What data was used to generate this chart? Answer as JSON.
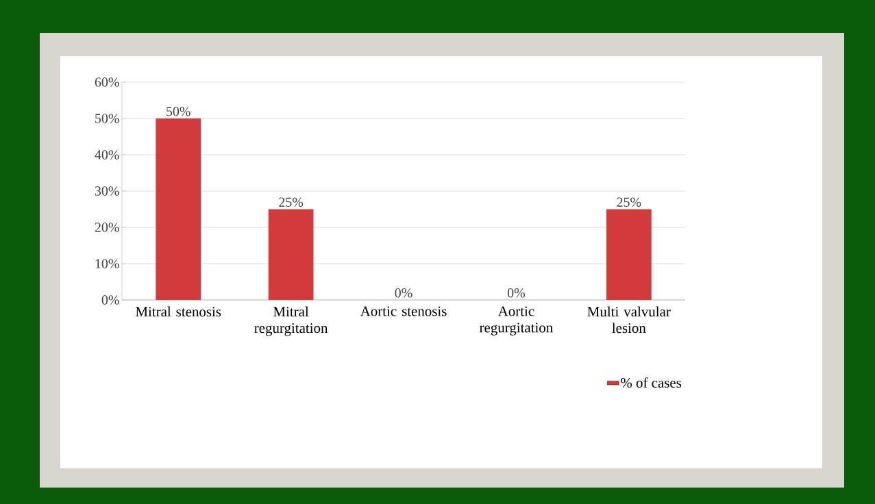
{
  "chart_data": {
    "type": "bar",
    "categories": [
      "Mitral stenosis",
      "Mitral regurgitation",
      "Aortic stenosis",
      "Aortic regurgitation",
      "Multi valvular lesion"
    ],
    "series": [
      {
        "name": "% of cases",
        "color": "#d13b3b",
        "values": [
          50,
          25,
          0,
          0,
          25
        ],
        "value_labels": [
          "50%",
          "25%",
          "0%",
          "0%",
          "25%"
        ]
      }
    ],
    "ylim": [
      0,
      60
    ],
    "yticks": [
      {
        "value": 0,
        "label": "0%"
      },
      {
        "value": 10,
        "label": "10%"
      },
      {
        "value": 20,
        "label": "20%"
      },
      {
        "value": 30,
        "label": "30%"
      },
      {
        "value": 40,
        "label": "40%"
      },
      {
        "value": 50,
        "label": "50%"
      },
      {
        "value": 60,
        "label": "60%"
      }
    ],
    "grid": "y",
    "legend": "bottom right"
  }
}
